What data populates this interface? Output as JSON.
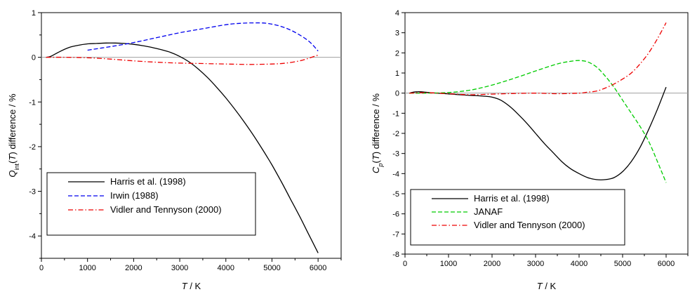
{
  "chart_data": [
    {
      "type": "line",
      "xlabel": "T / K",
      "ylabel": "Q_int(T) difference / %",
      "xlim": [
        0,
        6500
      ],
      "ylim": [
        -4.5,
        1.0
      ],
      "xticks": [
        0,
        1000,
        2000,
        3000,
        4000,
        5000,
        6000
      ],
      "yticks": [
        1,
        0,
        -1,
        -2,
        -3,
        -4
      ],
      "grid": false,
      "legend_position": "bottom-left",
      "zero_line": true,
      "series": [
        {
          "name": "Harris et al. (1998)",
          "color": "#000000",
          "dash": "solid",
          "x": [
            100,
            200,
            400,
            600,
            800,
            1000,
            1200,
            1400,
            1600,
            1800,
            2000,
            2200,
            2400,
            2600,
            2800,
            3000,
            3200,
            3400,
            3600,
            3800,
            4000,
            4200,
            4400,
            4600,
            4800,
            5000,
            5200,
            5400,
            5600,
            5800,
            6000
          ],
          "y": [
            0.0,
            0.02,
            0.13,
            0.22,
            0.27,
            0.3,
            0.31,
            0.32,
            0.32,
            0.31,
            0.29,
            0.26,
            0.22,
            0.17,
            0.11,
            0.02,
            -0.1,
            -0.26,
            -0.45,
            -0.67,
            -0.91,
            -1.17,
            -1.45,
            -1.75,
            -2.07,
            -2.41,
            -2.78,
            -3.17,
            -3.56,
            -3.97,
            -4.38
          ]
        },
        {
          "name": "Irwin (1988)",
          "color": "#0000ee",
          "dash": "dashed",
          "x": [
            1000,
            1500,
            2000,
            2500,
            3000,
            3500,
            4000,
            4300,
            4600,
            4900,
            5200,
            5500,
            5800,
            6000
          ],
          "y": [
            0.16,
            0.24,
            0.33,
            0.44,
            0.55,
            0.64,
            0.73,
            0.76,
            0.77,
            0.76,
            0.69,
            0.56,
            0.36,
            0.14
          ]
        },
        {
          "name": "Vidler and Tennyson (2000)",
          "color": "#ee0000",
          "dash": "dashdot",
          "x": [
            100,
            500,
            1000,
            1500,
            2000,
            2500,
            3000,
            3500,
            4000,
            4500,
            5000,
            5300,
            5600,
            5800,
            6000
          ],
          "y": [
            0.0,
            -0.0,
            -0.01,
            -0.04,
            -0.08,
            -0.11,
            -0.13,
            -0.14,
            -0.15,
            -0.16,
            -0.15,
            -0.13,
            -0.08,
            -0.02,
            0.05
          ]
        }
      ]
    },
    {
      "type": "line",
      "xlabel": "T / K",
      "ylabel": "C_p(T) difference / %",
      "xlim": [
        0,
        6500
      ],
      "ylim": [
        -8,
        4
      ],
      "xticks": [
        0,
        1000,
        2000,
        3000,
        4000,
        5000,
        6000
      ],
      "yticks": [
        4,
        3,
        2,
        1,
        0,
        -1,
        -2,
        -3,
        -4,
        -5,
        -6,
        -7,
        -8
      ],
      "grid": false,
      "legend_position": "bottom-left",
      "zero_line": true,
      "series": [
        {
          "name": "Harris et al. (1998)",
          "color": "#000000",
          "dash": "solid",
          "x": [
            100,
            200,
            300,
            400,
            600,
            800,
            1000,
            1200,
            1400,
            1600,
            1800,
            2000,
            2200,
            2400,
            2600,
            2800,
            3000,
            3200,
            3400,
            3600,
            3800,
            4000,
            4200,
            4400,
            4600,
            4800,
            5000,
            5200,
            5400,
            5600,
            5800,
            6000
          ],
          "y": [
            0.0,
            0.05,
            0.07,
            0.06,
            0.02,
            -0.01,
            -0.04,
            -0.07,
            -0.1,
            -0.12,
            -0.15,
            -0.2,
            -0.35,
            -0.65,
            -1.05,
            -1.5,
            -2.0,
            -2.5,
            -2.95,
            -3.4,
            -3.75,
            -4.0,
            -4.2,
            -4.3,
            -4.3,
            -4.2,
            -3.9,
            -3.4,
            -2.7,
            -1.8,
            -0.8,
            0.3
          ]
        },
        {
          "name": "JANAF",
          "color": "#00cc00",
          "dash": "dashed",
          "x": [
            100,
            500,
            1000,
            1500,
            2000,
            2500,
            3000,
            3500,
            3800,
            4000,
            4200,
            4400,
            4600,
            4800,
            5000,
            5200,
            5400,
            5600,
            5800,
            6000
          ],
          "y": [
            0.0,
            0.0,
            0.03,
            0.15,
            0.4,
            0.73,
            1.1,
            1.45,
            1.58,
            1.62,
            1.55,
            1.3,
            0.85,
            0.3,
            -0.35,
            -1.0,
            -1.65,
            -2.4,
            -3.4,
            -4.45
          ]
        },
        {
          "name": "Vidler and Tennyson (2000)",
          "color": "#ee0000",
          "dash": "dashdot",
          "x": [
            100,
            500,
            1000,
            1500,
            2000,
            2500,
            3000,
            3500,
            4000,
            4200,
            4400,
            4600,
            4800,
            5000,
            5200,
            5400,
            5600,
            5800,
            6000
          ],
          "y": [
            0.0,
            0.02,
            -0.03,
            -0.08,
            -0.05,
            -0.02,
            0.0,
            -0.03,
            0.0,
            0.05,
            0.1,
            0.25,
            0.45,
            0.7,
            1.0,
            1.45,
            2.0,
            2.7,
            3.5
          ]
        }
      ]
    }
  ]
}
